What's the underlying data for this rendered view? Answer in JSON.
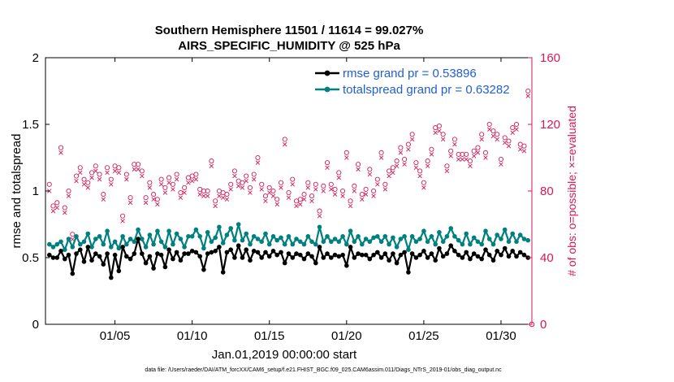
{
  "chart_data": {
    "type": "line",
    "title": [
      "Southern Hemisphere 11501 / 11614 = 99.027%",
      "AIRS_SPECIFIC_HUMIDITY @ 525 hPa"
    ],
    "xlabel": "Jan.01,2019 00:00:00 start",
    "ylabel": "rmse and totalspread",
    "ylabel_right": "# of obs: o=possible; ×=evaluated",
    "xlim": [
      0.5,
      32.0
    ],
    "ylim": [
      0,
      2
    ],
    "ylim_right": [
      0,
      160
    ],
    "x_ticks": [
      5,
      10,
      15,
      20,
      25,
      30
    ],
    "x_tick_labels": [
      "01/05",
      "01/10",
      "01/15",
      "01/20",
      "01/25",
      "01/30"
    ],
    "y_ticks": [
      0,
      0.5,
      1,
      1.5,
      2
    ],
    "y_tick_labels": [
      "0",
      "0.5",
      "1",
      "1.5",
      "2"
    ],
    "y_ticks_right": [
      0,
      40,
      80,
      120,
      160
    ],
    "y_tick_labels_right": [
      "0",
      "40",
      "80",
      "120",
      "160"
    ],
    "legend": [
      "rmse grand pr = 0.53896",
      "totalspread grand pr = 0.63282"
    ],
    "footer": "data file: /Users/raeder/DAI/ATM_forcXX/CAM6_setup/f.e21.FHIST_BGC.f09_025.CAM6assim.011/Diags_NTrS_2019-01/obs_diag_output.nc",
    "colors": {
      "rmse": "#000000",
      "spread": "#00807f",
      "obs": "#d6175c",
      "legend_text": "#1f5fd6"
    },
    "series": [
      {
        "name": "rmse",
        "time_step": 0.25,
        "x_start": 0.75,
        "values": [
          0.52,
          0.5,
          0.5,
          0.55,
          0.49,
          0.52,
          0.38,
          0.53,
          0.56,
          0.47,
          0.58,
          0.48,
          0.53,
          0.51,
          0.45,
          0.53,
          0.35,
          0.52,
          0.4,
          0.58,
          0.51,
          0.49,
          0.53,
          0.64,
          0.53,
          0.46,
          0.51,
          0.42,
          0.53,
          0.52,
          0.43,
          0.56,
          0.49,
          0.54,
          0.48,
          0.53,
          0.53,
          0.55,
          0.54,
          0.51,
          0.41,
          0.53,
          0.54,
          0.55,
          0.58,
          0.39,
          0.54,
          0.56,
          0.5,
          0.59,
          0.5,
          0.56,
          0.48,
          0.55,
          0.54,
          0.5,
          0.54,
          0.51,
          0.55,
          0.52,
          0.54,
          0.46,
          0.53,
          0.5,
          0.53,
          0.52,
          0.49,
          0.53,
          0.51,
          0.46,
          0.58,
          0.5,
          0.53,
          0.5,
          0.52,
          0.51,
          0.52,
          0.44,
          0.58,
          0.5,
          0.53,
          0.52,
          0.52,
          0.49,
          0.52,
          0.54,
          0.5,
          0.53,
          0.48,
          0.53,
          0.46,
          0.52,
          0.54,
          0.39,
          0.53,
          0.5,
          0.52,
          0.55,
          0.5,
          0.53,
          0.48,
          0.57,
          0.51,
          0.53,
          0.59,
          0.55,
          0.52,
          0.5,
          0.54,
          0.49,
          0.53,
          0.51,
          0.49,
          0.56,
          0.52,
          0.48,
          0.55,
          0.52,
          0.57,
          0.51,
          0.55,
          0.51,
          0.54,
          0.52,
          0.5
        ]
      },
      {
        "name": "totalspread",
        "time_step": 0.25,
        "x_start": 0.75,
        "values": [
          0.6,
          0.58,
          0.6,
          0.62,
          0.56,
          0.64,
          0.58,
          0.66,
          0.6,
          0.62,
          0.68,
          0.58,
          0.64,
          0.66,
          0.6,
          0.7,
          0.58,
          0.62,
          0.57,
          0.66,
          0.6,
          0.64,
          0.62,
          0.71,
          0.64,
          0.58,
          0.67,
          0.6,
          0.7,
          0.62,
          0.58,
          0.7,
          0.6,
          0.68,
          0.64,
          0.58,
          0.66,
          0.66,
          0.71,
          0.66,
          0.57,
          0.69,
          0.62,
          0.65,
          0.73,
          0.61,
          0.67,
          0.72,
          0.63,
          0.75,
          0.63,
          0.68,
          0.6,
          0.66,
          0.64,
          0.62,
          0.68,
          0.6,
          0.66,
          0.63,
          0.65,
          0.6,
          0.66,
          0.6,
          0.64,
          0.62,
          0.6,
          0.66,
          0.62,
          0.6,
          0.73,
          0.62,
          0.66,
          0.62,
          0.64,
          0.62,
          0.66,
          0.6,
          0.7,
          0.62,
          0.66,
          0.6,
          0.64,
          0.62,
          0.65,
          0.66,
          0.62,
          0.66,
          0.6,
          0.65,
          0.58,
          0.64,
          0.66,
          0.56,
          0.66,
          0.62,
          0.64,
          0.7,
          0.62,
          0.66,
          0.6,
          0.69,
          0.62,
          0.66,
          0.72,
          0.66,
          0.63,
          0.6,
          0.68,
          0.6,
          0.65,
          0.62,
          0.6,
          0.7,
          0.64,
          0.6,
          0.67,
          0.64,
          0.71,
          0.62,
          0.68,
          0.62,
          0.67,
          0.64,
          0.63
        ]
      },
      {
        "name": "obs_possible",
        "axis": "right",
        "marker": "circle",
        "time_step": 0.25,
        "x_start": 0.75,
        "values": [
          84,
          71,
          73,
          106,
          70,
          80,
          54,
          89,
          94,
          87,
          85,
          91,
          95,
          90,
          78,
          94,
          87,
          95,
          94,
          65,
          90,
          76,
          96,
          96,
          92,
          76,
          85,
          78,
          75,
          87,
          82,
          88,
          84,
          90,
          79,
          82,
          88,
          89,
          90,
          81,
          80,
          80,
          98,
          74,
          80,
          79,
          78,
          84,
          92,
          86,
          85,
          89,
          82,
          90,
          100,
          84,
          77,
          82,
          80,
          75,
          85,
          111,
          79,
          87,
          74,
          75,
          78,
          85,
          77,
          84,
          68,
          83,
          97,
          84,
          81,
          91,
          80,
          103,
          74,
          83,
          96,
          78,
          81,
          93,
          80,
          87,
          103,
          84,
          92,
          94,
          98,
          106,
          99,
          108,
          114,
          97,
          92,
          85,
          98,
          105,
          118,
          119,
          114,
          95,
          104,
          111,
          102,
          102,
          102,
          98,
          104,
          106,
          114,
          103,
          120,
          116,
          114,
          99,
          112,
          110,
          118,
          120,
          108,
          107,
          140
        ]
      },
      {
        "name": "obs_evaluated",
        "axis": "right",
        "marker": "x",
        "time_step": 0.25,
        "x_start": 0.75,
        "values": [
          80,
          68,
          70,
          103,
          67,
          77,
          51,
          86,
          91,
          84,
          82,
          88,
          92,
          87,
          75,
          91,
          84,
          92,
          91,
          62,
          87,
          73,
          93,
          93,
          89,
          73,
          82,
          75,
          72,
          84,
          79,
          85,
          81,
          87,
          76,
          79,
          85,
          86,
          87,
          78,
          77,
          77,
          95,
          71,
          77,
          76,
          75,
          81,
          89,
          83,
          82,
          86,
          79,
          87,
          97,
          81,
          74,
          79,
          77,
          72,
          82,
          108,
          76,
          84,
          71,
          72,
          75,
          82,
          74,
          81,
          65,
          80,
          94,
          81,
          78,
          88,
          77,
          100,
          71,
          80,
          93,
          75,
          78,
          90,
          77,
          84,
          100,
          81,
          89,
          91,
          95,
          103,
          96,
          105,
          111,
          94,
          89,
          82,
          95,
          102,
          115,
          116,
          111,
          92,
          101,
          108,
          99,
          99,
          99,
          95,
          101,
          103,
          111,
          100,
          117,
          113,
          111,
          96,
          109,
          107,
          115,
          117,
          105,
          104,
          137
        ]
      }
    ]
  }
}
